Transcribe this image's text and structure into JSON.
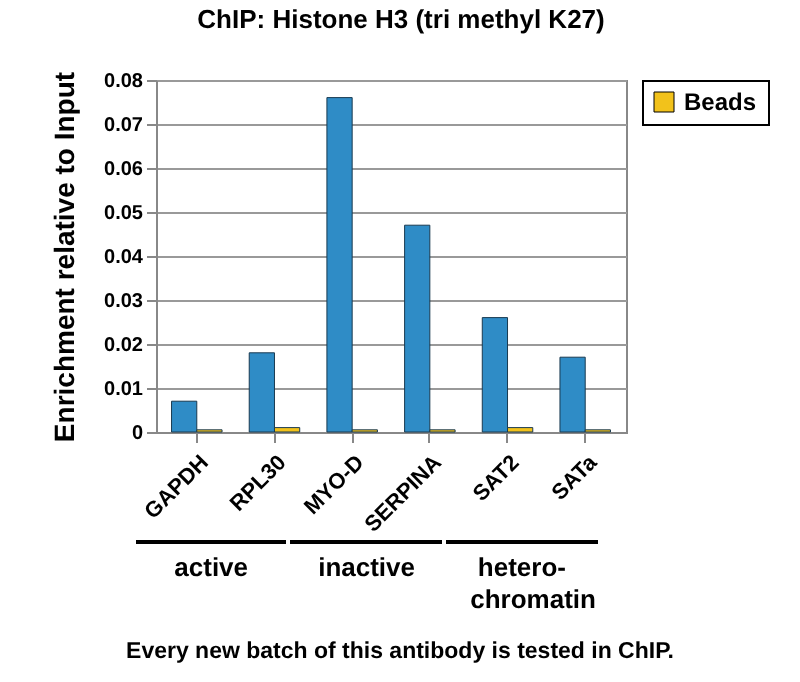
{
  "chart_data": {
    "type": "bar",
    "title": "ChIP: Histone H3 (tri methyl K27)",
    "ylabel": "Enrichment relative to Input",
    "categories": [
      "GAPDH",
      "RPL30",
      "MYO-D",
      "SERPINA",
      "SAT2",
      "SATa"
    ],
    "series": [
      {
        "color": "#2f8cc6",
        "values": [
          0.007,
          0.018,
          0.076,
          0.047,
          0.026,
          0.017
        ]
      },
      {
        "name": "Beads",
        "color": "#f2c21b",
        "values": [
          0.0005,
          0.001,
          0.0005,
          0.0005,
          0.001,
          0.0005
        ]
      }
    ],
    "ylim": [
      0,
      0.08
    ],
    "yticks": [
      0,
      0.01,
      0.02,
      0.03,
      0.04,
      0.05,
      0.06,
      0.07,
      0.08
    ],
    "grid": "y",
    "legend": "right",
    "annotations": [
      "active",
      "inactive",
      "hetero-chromatin",
      "Every new batch of this antibody is tested in ChIP."
    ]
  }
}
